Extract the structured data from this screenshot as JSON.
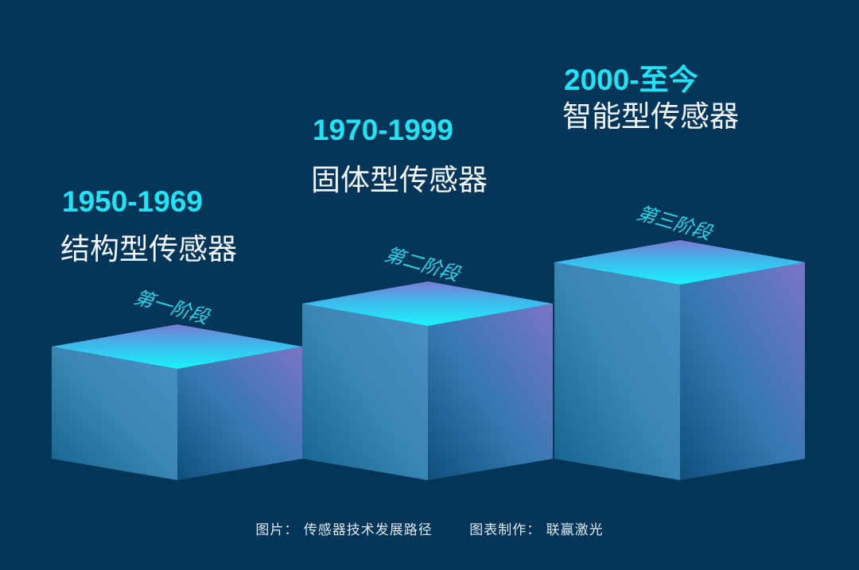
{
  "stages": [
    {
      "period": "1950-1969",
      "type": "结构型传感器",
      "label": "第一阶段"
    },
    {
      "period": "1970-1999",
      "type": "固体型传感器",
      "label": "第二阶段"
    },
    {
      "period": "2000-至今",
      "type": "智能型传感器",
      "label": "第三阶段"
    }
  ],
  "caption": {
    "source": "图片：  传感器技术发展路径",
    "credit": "图表制作：  联赢激光"
  },
  "colors": {
    "background": "#023658",
    "period_text": "#22e3f5",
    "top_face_front": "#19f4fb",
    "top_face_back": "#7a7ad0",
    "stage_label": "#2ad6e8"
  }
}
